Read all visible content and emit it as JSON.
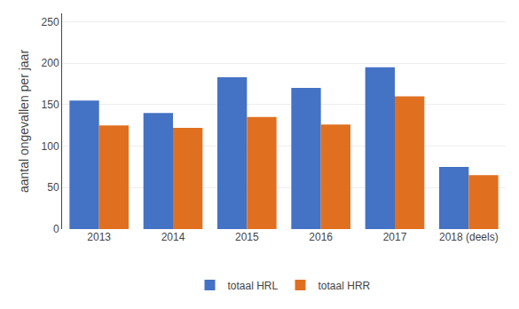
{
  "chart_data": {
    "type": "bar",
    "categories": [
      "2013",
      "2014",
      "2015",
      "2016",
      "2017",
      "2018 (deels)"
    ],
    "series": [
      {
        "name": "totaal HRL",
        "color": "#4472C4",
        "values": [
          155,
          140,
          183,
          170,
          195,
          75
        ]
      },
      {
        "name": "totaal HRR",
        "color": "#E07020",
        "values": [
          125,
          122,
          135,
          126,
          160,
          65
        ]
      }
    ],
    "ylabel": "aantal ongevallen per jaar",
    "ylim": [
      0,
      260
    ],
    "yticks": [
      0,
      50,
      100,
      150,
      200,
      250
    ],
    "grid": true,
    "legend": "bottom"
  }
}
